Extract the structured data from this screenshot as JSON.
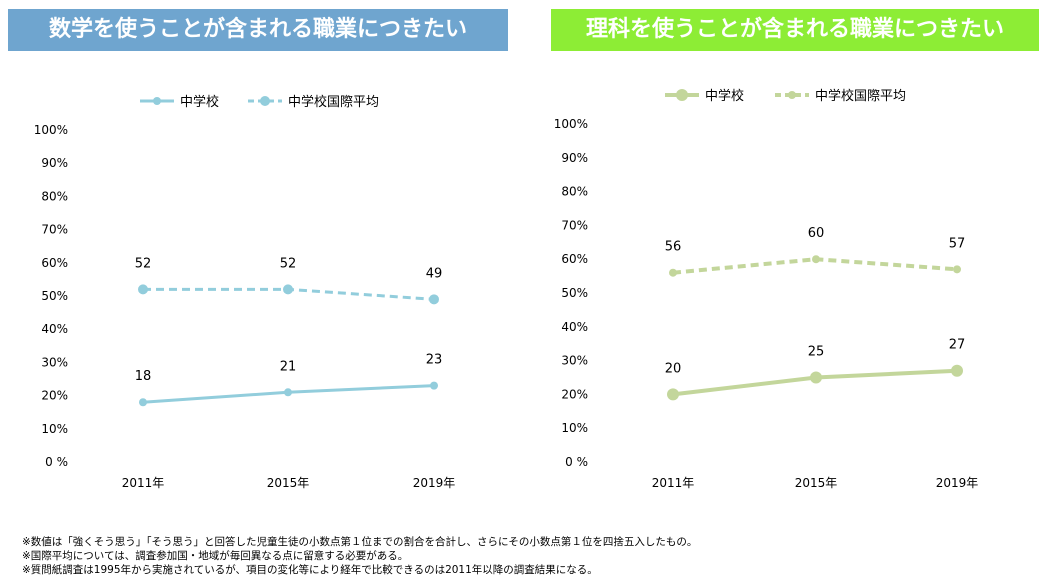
{
  "colors": {
    "math_banner": "#6fa5cf",
    "science_banner": "#8ded35",
    "math_line": "#92cddc",
    "science_line": "#c3d69b"
  },
  "chart_data": [
    {
      "type": "line",
      "title": "数学を使うことが含まれる職業につきたい",
      "categories": [
        "2011年",
        "2015年",
        "2019年"
      ],
      "series": [
        {
          "name": "中学校",
          "values": [
            18,
            21,
            23
          ],
          "style": "solid"
        },
        {
          "name": "中学校国際平均",
          "values": [
            52,
            52,
            49
          ],
          "style": "dashed"
        }
      ],
      "yticks": [
        "0 %",
        "10%",
        "20%",
        "30%",
        "40%",
        "50%",
        "60%",
        "70%",
        "80%",
        "90%",
        "100%"
      ],
      "ylim": [
        0,
        100
      ],
      "grid": false,
      "legend": "top"
    },
    {
      "type": "line",
      "title": "理科を使うことが含まれる職業につきたい",
      "categories": [
        "2011年",
        "2015年",
        "2019年"
      ],
      "series": [
        {
          "name": "中学校",
          "values": [
            20,
            25,
            27
          ],
          "style": "solid"
        },
        {
          "name": "中学校国際平均",
          "values": [
            56,
            60,
            57
          ],
          "style": "dashed"
        }
      ],
      "yticks": [
        "0 %",
        "10%",
        "20%",
        "30%",
        "40%",
        "50%",
        "60%",
        "70%",
        "80%",
        "90%",
        "100%"
      ],
      "ylim": [
        0,
        100
      ],
      "grid": false,
      "legend": "top"
    }
  ],
  "notes": [
    "※数値は「強くそう思う」「そう思う」と回答した児童生徒の小数点第１位までの割合を合計し、さらにその小数点第１位を四捨五入したもの。",
    "※国際平均については、調査参加国・地域が毎回異なる点に留意する必要がある。",
    "※質問紙調査は1995年から実施されているが、項目の変化等により経年で比較できるのは2011年以降の調査結果になる。"
  ]
}
